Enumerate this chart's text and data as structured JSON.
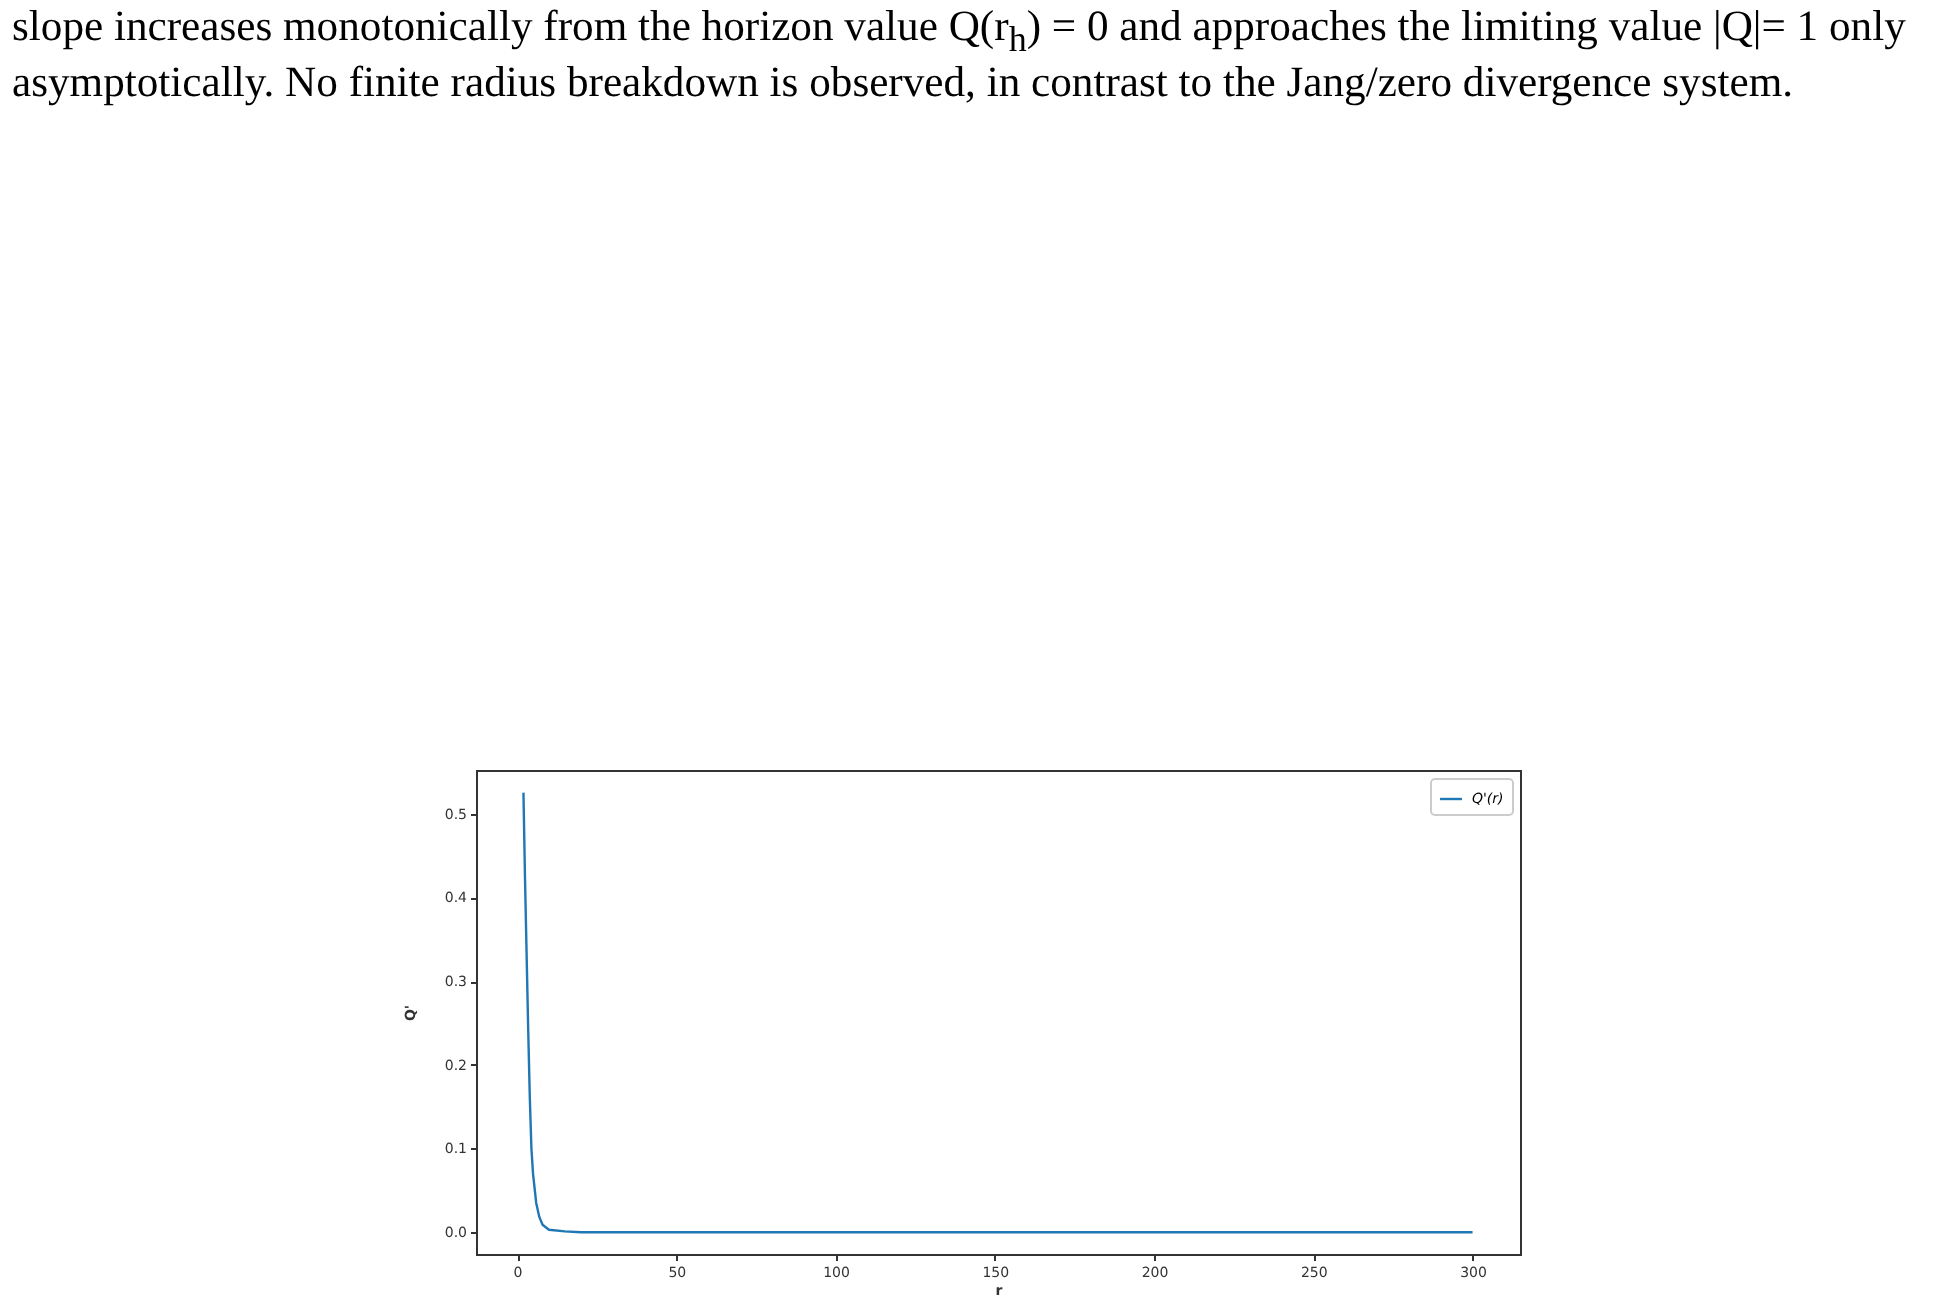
{
  "chart_data": {
    "type": "line",
    "xlabel": "r",
    "ylabel": "Q'",
    "annotations": [
      "slope increases monotonically from the horizon value Q(r$_{h}$) = 0 and approaches the limiting value |Q|= 1 only",
      "asymptotically. No finite radius breakdown is observed, in contrast to the Jang/zero divergence system."
    ],
    "x": [
      2,
      2.5,
      3,
      3.5,
      4,
      4.5,
      5,
      6,
      7,
      8,
      10,
      15,
      20,
      50,
      100,
      150,
      200,
      250,
      300
    ],
    "series": [
      {
        "name": "Q'(r)",
        "color": "#1f77b4",
        "values": [
          0.525,
          0.42,
          0.33,
          0.24,
          0.16,
          0.1,
          0.07,
          0.035,
          0.018,
          0.009,
          0.003,
          0.001,
          0,
          0,
          0,
          0,
          0,
          0,
          0
        ]
      }
    ],
    "xlim": [
      -12.9,
      314.9
    ],
    "ylim": [
      -0.026,
      0.552
    ],
    "xticks": [
      0,
      50,
      100,
      150,
      200,
      250,
      300
    ],
    "yticks": [
      {
        "value": 0,
        "label": "0.0"
      },
      0.1,
      0.2,
      0.3,
      0.4,
      0.5
    ],
    "legend": "top right",
    "grid": false,
    "marker": "none",
    "line_style": "solid"
  }
}
